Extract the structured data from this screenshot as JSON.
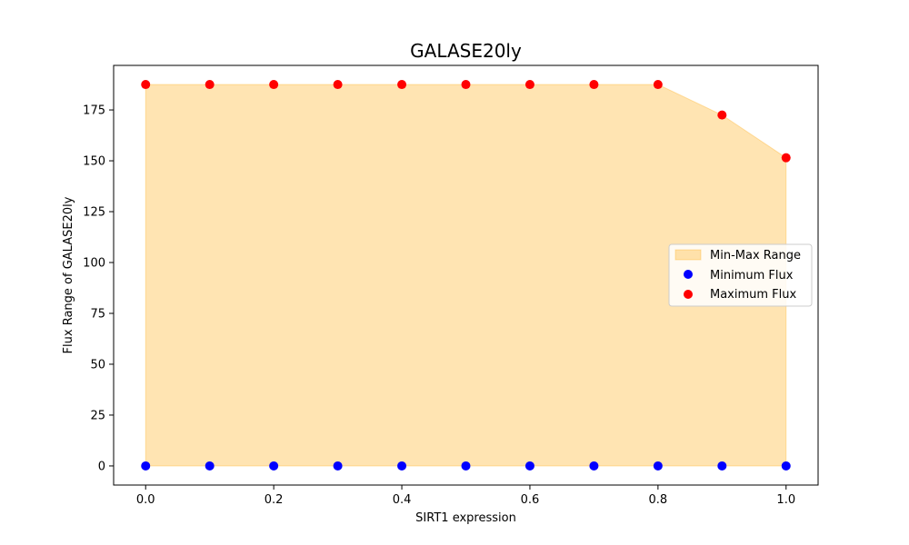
{
  "chart_data": {
    "type": "area",
    "title": "GALASE20ly",
    "xlabel": "SIRT1 expression",
    "ylabel": "Flux Range of GALASE20ly",
    "x": [
      0.0,
      0.1,
      0.2,
      0.3,
      0.4,
      0.5,
      0.6,
      0.7,
      0.8,
      0.9,
      1.0
    ],
    "series": [
      {
        "name": "Minimum Flux",
        "values": [
          0,
          0,
          0,
          0,
          0,
          0,
          0,
          0,
          0,
          0,
          0
        ],
        "color": "#0000ff"
      },
      {
        "name": "Maximum Flux",
        "values": [
          187.5,
          187.5,
          187.5,
          187.5,
          187.5,
          187.5,
          187.5,
          187.5,
          187.5,
          172.5,
          151.5
        ],
        "color": "#ff0000"
      }
    ],
    "fill": {
      "name": "Min-Max Range",
      "color": "#ffa500",
      "opacity": 0.3
    },
    "xlim": [
      -0.05,
      1.05
    ],
    "ylim": [
      -9.4,
      196.9
    ],
    "xticks": [
      "0.0",
      "0.2",
      "0.4",
      "0.6",
      "0.8",
      "1.0"
    ],
    "yticks": [
      "0",
      "25",
      "50",
      "75",
      "100",
      "125",
      "150",
      "175"
    ],
    "grid": false,
    "legend_position": "right"
  }
}
